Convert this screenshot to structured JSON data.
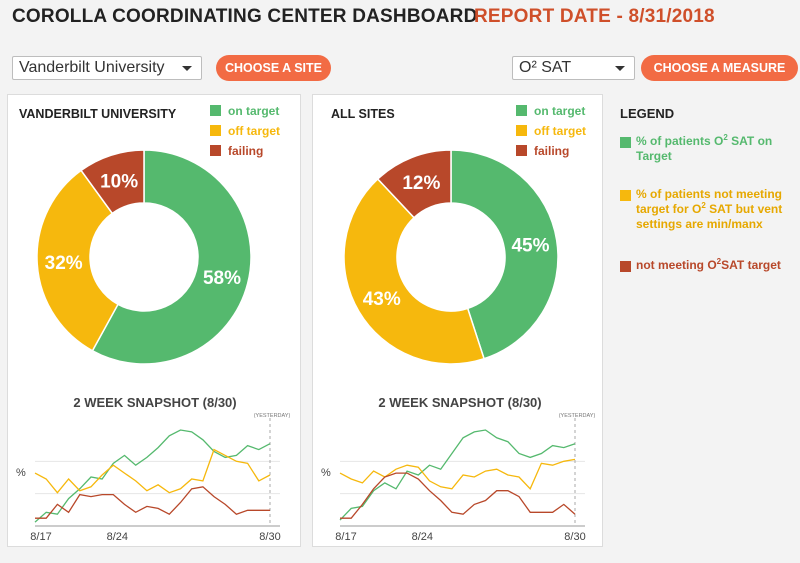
{
  "header": {
    "title": "COROLLA COORDINATING CENTER DASHBOARD",
    "report_date": "REPORT DATE - 8/31/2018"
  },
  "controls": {
    "site_select_value": "Vanderbilt University",
    "choose_site_label": "CHOOSE A SITE",
    "measure_select_value": "O² SAT",
    "choose_measure_label": "CHOOSE A MEASURE"
  },
  "colors": {
    "on_target": "#55b96e",
    "off_target": "#f6b80d",
    "failing": "#b8482a",
    "accent": "#f26b44"
  },
  "legend": {
    "title": "LEGEND",
    "items": [
      {
        "pre": "% of patients O",
        "sup": "2",
        "post": " SAT on Target"
      },
      {
        "pre": "% of patients not meeting target for O",
        "sup": "2",
        "post": " SAT but vent settings are min/manx"
      },
      {
        "pre": "not meeting O",
        "sup": "2",
        "post": "SAT target"
      }
    ]
  },
  "chart_data": [
    {
      "type": "pie",
      "title": "VANDERBILT UNIVERSITY",
      "legend": [
        "on target",
        "off target",
        "failing"
      ],
      "values": [
        58,
        32,
        10
      ],
      "labels": [
        "58%",
        "32%",
        "10%"
      ]
    },
    {
      "type": "line",
      "title": "2 WEEK SNAPSHOT (8/30)",
      "ylabel": "%",
      "annotation": "(YESTERDAY)",
      "tick_labels": [
        "8/17",
        "8/24",
        "8/30"
      ],
      "x": [
        1,
        2,
        3,
        4,
        5,
        6,
        7,
        8,
        9,
        10,
        11,
        12,
        13,
        14,
        15,
        16,
        17,
        18,
        19,
        20,
        21,
        22
      ],
      "ylim": [
        0,
        100
      ],
      "series": [
        {
          "name": "on target",
          "values": [
            4,
            14,
            12,
            28,
            38,
            50,
            48,
            64,
            72,
            62,
            70,
            80,
            92,
            98,
            96,
            88,
            76,
            70,
            72,
            82,
            78,
            84
          ]
        },
        {
          "name": "off target",
          "values": [
            54,
            48,
            34,
            48,
            36,
            40,
            52,
            62,
            54,
            46,
            36,
            42,
            34,
            38,
            48,
            46,
            78,
            72,
            66,
            64,
            46,
            52
          ]
        },
        {
          "name": "failing",
          "values": [
            8,
            8,
            22,
            14,
            32,
            30,
            32,
            32,
            22,
            14,
            20,
            18,
            12,
            24,
            38,
            40,
            30,
            22,
            12,
            16,
            16,
            16
          ]
        }
      ]
    },
    {
      "type": "pie",
      "title": "ALL SITES",
      "legend": [
        "on target",
        "off target",
        "failing"
      ],
      "values": [
        45,
        43,
        12
      ],
      "labels": [
        "45%",
        "43%",
        "12%"
      ]
    },
    {
      "type": "line",
      "title": "2 WEEK SNAPSHOT (8/30)",
      "ylabel": "%",
      "annotation": "(YESTERDAY)",
      "tick_labels": [
        "8/17",
        "8/24",
        "8/30"
      ],
      "x": [
        1,
        2,
        3,
        4,
        5,
        6,
        7,
        8,
        9,
        10,
        11,
        12,
        13,
        14,
        15,
        16,
        17,
        18,
        19,
        20,
        21,
        22
      ],
      "ylim": [
        0,
        100
      ],
      "series": [
        {
          "name": "on target",
          "values": [
            6,
            18,
            20,
            36,
            44,
            38,
            56,
            52,
            62,
            58,
            74,
            90,
            96,
            98,
            90,
            86,
            74,
            70,
            74,
            82,
            80,
            84
          ]
        },
        {
          "name": "off target",
          "values": [
            54,
            48,
            44,
            56,
            50,
            58,
            62,
            60,
            46,
            40,
            38,
            52,
            50,
            56,
            58,
            52,
            50,
            38,
            64,
            62,
            66,
            68
          ]
        },
        {
          "name": "failing",
          "values": [
            8,
            8,
            22,
            38,
            50,
            54,
            54,
            48,
            36,
            26,
            14,
            12,
            22,
            26,
            36,
            36,
            30,
            14,
            14,
            14,
            22,
            12
          ]
        }
      ]
    }
  ]
}
